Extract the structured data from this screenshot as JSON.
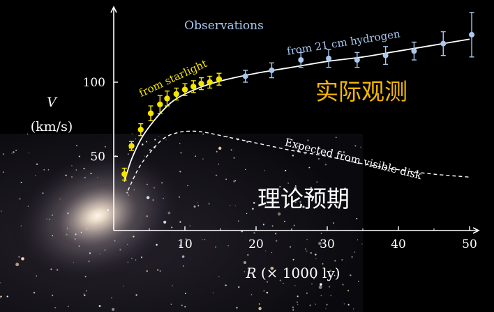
{
  "chart_data": {
    "type": "scatter",
    "title": "Observations",
    "xlabel": "R  (× 1000 ly)",
    "ylabel_symbol": "V",
    "ylabel_unit": "(km/s)",
    "xlim": [
      0,
      52
    ],
    "ylim": [
      0,
      145
    ],
    "x_ticks": [
      10,
      20,
      30,
      40,
      50
    ],
    "y_ticks": [
      50,
      100
    ],
    "grid": false,
    "series": [
      {
        "name": "from  starlight",
        "color": "#f2e600",
        "marker": "circle",
        "points": [
          {
            "x": 1.5,
            "y": 38,
            "err": 4
          },
          {
            "x": 2.5,
            "y": 57,
            "err": 3
          },
          {
            "x": 3.8,
            "y": 68,
            "err": 4
          },
          {
            "x": 5.2,
            "y": 79,
            "err": 5
          },
          {
            "x": 6.5,
            "y": 85,
            "err": 6
          },
          {
            "x": 7.5,
            "y": 89,
            "err": 5
          },
          {
            "x": 8.8,
            "y": 92,
            "err": 4
          },
          {
            "x": 10,
            "y": 95,
            "err": 4
          },
          {
            "x": 11.2,
            "y": 97,
            "err": 4
          },
          {
            "x": 12.3,
            "y": 99,
            "err": 4
          },
          {
            "x": 13.5,
            "y": 100,
            "err": 4
          },
          {
            "x": 14.8,
            "y": 102,
            "err": 4
          }
        ]
      },
      {
        "name": "from 21 cm hydrogen",
        "color": "#a9c8f0",
        "marker": "circle",
        "points": [
          {
            "x": 18.5,
            "y": 104,
            "err": 4
          },
          {
            "x": 22.2,
            "y": 108,
            "err": 5
          },
          {
            "x": 26.3,
            "y": 115,
            "err": 5
          },
          {
            "x": 30.2,
            "y": 116,
            "err": 6
          },
          {
            "x": 34.2,
            "y": 115,
            "err": 5
          },
          {
            "x": 38.2,
            "y": 118,
            "err": 6
          },
          {
            "x": 42.2,
            "y": 121,
            "err": 6
          },
          {
            "x": 46.3,
            "y": 126,
            "err": 8
          },
          {
            "x": 50.3,
            "y": 132,
            "err": 15
          }
        ]
      }
    ],
    "fit_curve": {
      "color": "#ffffff",
      "style": "solid",
      "points": [
        [
          1.5,
          33
        ],
        [
          2.5,
          48
        ],
        [
          4,
          63
        ],
        [
          6,
          76
        ],
        [
          8,
          86
        ],
        [
          10,
          92
        ],
        [
          13,
          98
        ],
        [
          16,
          102
        ],
        [
          20,
          106
        ],
        [
          25,
          110
        ],
        [
          30,
          114
        ],
        [
          35,
          117
        ],
        [
          40,
          121
        ],
        [
          45,
          125
        ],
        [
          50,
          129
        ]
      ]
    },
    "expected_curve": {
      "name": "Expected from visible disk",
      "color": "#ffffff",
      "style": "dashed",
      "points": [
        [
          2,
          27
        ],
        [
          3.5,
          42
        ],
        [
          5,
          52
        ],
        [
          7,
          62
        ],
        [
          9,
          66
        ],
        [
          11,
          67
        ],
        [
          13,
          66
        ],
        [
          16,
          63
        ],
        [
          20,
          59
        ],
        [
          25,
          54
        ],
        [
          30,
          50
        ],
        [
          35,
          45
        ],
        [
          40,
          41
        ],
        [
          45,
          38
        ],
        [
          50,
          36
        ]
      ]
    },
    "annotations": {
      "observed_cn": "实际观测",
      "expected_cn": "理论预期"
    }
  },
  "colors": {
    "axis": "#ffffff",
    "title": "#a9c8f0",
    "observed_cn": "#f5b800",
    "expected_cn": "#ffffff"
  }
}
